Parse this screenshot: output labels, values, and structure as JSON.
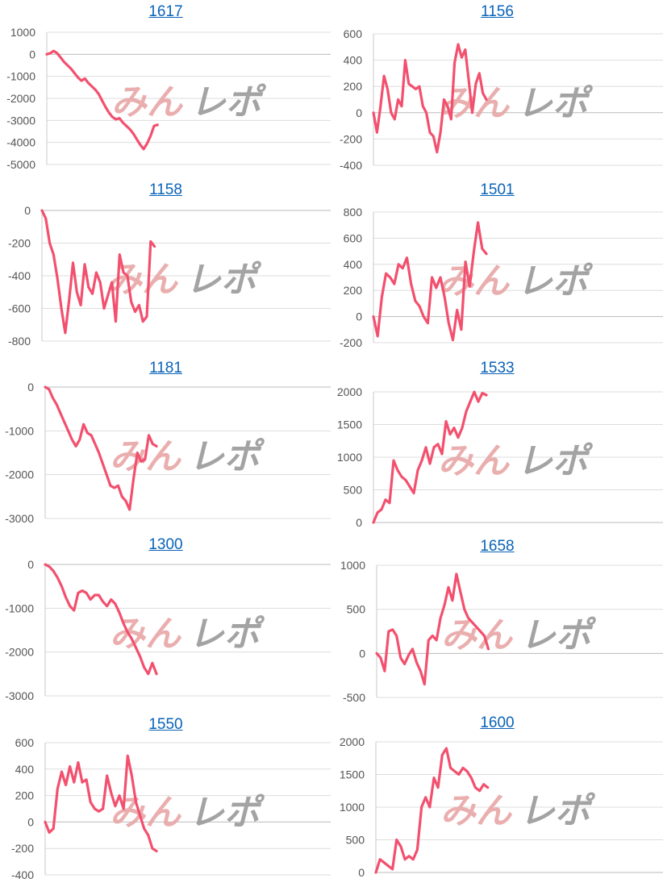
{
  "theme": {
    "line_color": "#f2506e",
    "grid_color": "#dddddd",
    "axis_color": "#c8c8c8",
    "zero_line_color": "#bbbbbb",
    "title_color": "#0a63b8",
    "watermark_colors": [
      "#e8a6a6",
      "#9a9a9a"
    ]
  },
  "watermark": {
    "label": "みんレポ"
  },
  "chart_data": [
    {
      "type": "line",
      "title": "1617",
      "ylim": [
        -5000,
        1000
      ],
      "yticks": [
        1000,
        0,
        -1000,
        -2000,
        -3000,
        -4000,
        -5000
      ],
      "series": [
        {
          "values": [
            0,
            50,
            150,
            50,
            -150,
            -350,
            -500,
            -650,
            -850,
            -1050,
            -1200,
            -1100,
            -1300,
            -1450,
            -1600,
            -1800,
            -2100,
            -2400,
            -2650,
            -2850,
            -2950,
            -2900,
            -3100,
            -3250,
            -3400,
            -3600,
            -3850,
            -4100,
            -4300,
            -4050,
            -3700,
            -3250,
            -3200
          ]
        }
      ]
    },
    {
      "type": "line",
      "title": "1156",
      "ylim": [
        -400,
        600
      ],
      "yticks": [
        600,
        400,
        200,
        0,
        -200,
        -400
      ],
      "series": [
        {
          "values": [
            0,
            -150,
            50,
            280,
            180,
            0,
            -50,
            100,
            50,
            400,
            220,
            200,
            180,
            200,
            50,
            0,
            -150,
            -180,
            -300,
            -150,
            100,
            50,
            -50,
            380,
            520,
            420,
            480,
            250,
            0,
            220,
            300,
            150,
            100
          ]
        }
      ]
    },
    {
      "type": "line",
      "title": "1158",
      "ylim": [
        -800,
        0
      ],
      "yticks": [
        0,
        -200,
        -400,
        -600,
        -800
      ],
      "series": [
        {
          "values": [
            0,
            -50,
            -200,
            -270,
            -420,
            -600,
            -750,
            -550,
            -320,
            -500,
            -580,
            -330,
            -470,
            -510,
            -380,
            -440,
            -600,
            -520,
            -440,
            -680,
            -270,
            -380,
            -400,
            -560,
            -620,
            -580,
            -680,
            -650,
            -190,
            -220
          ]
        }
      ]
    },
    {
      "type": "line",
      "title": "1501",
      "ylim": [
        -200,
        800
      ],
      "yticks": [
        800,
        600,
        400,
        200,
        0,
        -200
      ],
      "series": [
        {
          "values": [
            0,
            -150,
            150,
            330,
            300,
            250,
            400,
            370,
            450,
            250,
            120,
            80,
            0,
            -50,
            300,
            220,
            300,
            150,
            -50,
            -180,
            50,
            -100,
            420,
            230,
            500,
            720,
            520,
            480
          ]
        }
      ]
    },
    {
      "type": "line",
      "title": "1181",
      "ylim": [
        -3000,
        0
      ],
      "yticks": [
        0,
        -1000,
        -2000,
        -3000
      ],
      "series": [
        {
          "values": [
            0,
            -50,
            -250,
            -400,
            -600,
            -800,
            -1000,
            -1200,
            -1350,
            -1200,
            -850,
            -1050,
            -1100,
            -1300,
            -1500,
            -1750,
            -2000,
            -2250,
            -2300,
            -2250,
            -2500,
            -2600,
            -2800,
            -2100,
            -1500,
            -1700,
            -1650,
            -1100,
            -1300,
            -1350
          ]
        }
      ]
    },
    {
      "type": "line",
      "title": "1533",
      "ylim": [
        0,
        2000
      ],
      "yticks": [
        2000,
        1500,
        1000,
        500,
        0
      ],
      "series": [
        {
          "values": [
            0,
            150,
            200,
            350,
            300,
            950,
            800,
            700,
            650,
            550,
            450,
            800,
            950,
            1150,
            900,
            1150,
            1200,
            1050,
            1550,
            1350,
            1450,
            1300,
            1450,
            1700,
            1850,
            2000,
            1850,
            1980,
            1950
          ]
        }
      ]
    },
    {
      "type": "line",
      "title": "1300",
      "ylim": [
        -3000,
        0
      ],
      "yticks": [
        0,
        -1000,
        -2000,
        -3000
      ],
      "series": [
        {
          "values": [
            0,
            -50,
            -150,
            -300,
            -500,
            -750,
            -950,
            -1050,
            -650,
            -600,
            -650,
            -800,
            -700,
            -700,
            -850,
            -950,
            -800,
            -900,
            -1100,
            -1350,
            -1550,
            -1700,
            -1900,
            -2100,
            -2350,
            -2500,
            -2250,
            -2500
          ]
        }
      ]
    },
    {
      "type": "line",
      "title": "1658",
      "ylim": [
        -500,
        1000
      ],
      "yticks": [
        1000,
        500,
        0,
        -500
      ],
      "series": [
        {
          "values": [
            0,
            -50,
            -200,
            250,
            270,
            200,
            -50,
            -120,
            -20,
            50,
            -100,
            -200,
            -350,
            150,
            200,
            150,
            400,
            550,
            750,
            600,
            900,
            700,
            500,
            400,
            350,
            300,
            250,
            200,
            50
          ]
        }
      ]
    },
    {
      "type": "line",
      "title": "1550",
      "ylim": [
        -400,
        600
      ],
      "yticks": [
        600,
        400,
        200,
        0,
        -200,
        -400
      ],
      "series": [
        {
          "values": [
            0,
            -80,
            -50,
            250,
            380,
            280,
            420,
            300,
            450,
            300,
            320,
            150,
            100,
            80,
            100,
            350,
            220,
            120,
            200,
            100,
            500,
            350,
            150,
            50,
            -50,
            -100,
            -200,
            -220
          ]
        }
      ]
    },
    {
      "type": "line",
      "title": "1600",
      "ylim": [
        0,
        2000
      ],
      "yticks": [
        2000,
        1500,
        1000,
        500,
        0
      ],
      "series": [
        {
          "values": [
            0,
            200,
            150,
            100,
            50,
            500,
            400,
            200,
            250,
            200,
            350,
            1000,
            1150,
            1000,
            1450,
            1300,
            1800,
            1900,
            1600,
            1550,
            1500,
            1600,
            1550,
            1450,
            1300,
            1250,
            1350,
            1300
          ]
        }
      ]
    }
  ]
}
